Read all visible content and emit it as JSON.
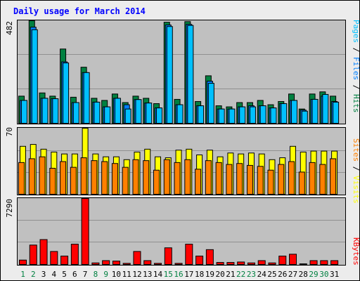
{
  "title": "Daily usage for March 2014",
  "colors": {
    "hits": "#008040",
    "files": "#0080ff",
    "pages": "#00c0ff",
    "visits": "#ffff00",
    "sites": "#ff8000",
    "kbytes": "#ff0000",
    "title": "#0000ff",
    "weekend": "#008040",
    "weekday": "#000000",
    "panel": "#c0c0c0",
    "background": "#ececec"
  },
  "legend": {
    "top": [
      "Pages",
      "Files",
      "Hits"
    ],
    "middle": [
      "Sites",
      "Visits"
    ],
    "bottom": [
      "KBytes"
    ],
    "separator": " / "
  },
  "chart_data": {
    "type": "bar",
    "categories": [
      "1",
      "2",
      "3",
      "4",
      "5",
      "6",
      "7",
      "8",
      "9",
      "10",
      "11",
      "12",
      "13",
      "14",
      "15",
      "16",
      "17",
      "18",
      "19",
      "20",
      "21",
      "22",
      "23",
      "24",
      "25",
      "26",
      "27",
      "28",
      "29",
      "30",
      "31"
    ],
    "weekend_days": [
      "1",
      "2",
      "8",
      "9",
      "15",
      "16",
      "22",
      "23",
      "29",
      "30"
    ],
    "series": [
      {
        "name": "Hits",
        "panel": "top",
        "values": [
          130,
          482,
          145,
          130,
          350,
          125,
          265,
          120,
          110,
          140,
          100,
          130,
          120,
          95,
          475,
          115,
          478,
          105,
          225,
          85,
          80,
          100,
          100,
          110,
          90,
          105,
          140,
          70,
          140,
          150,
          130
        ]
      },
      {
        "name": "Files",
        "panel": "top",
        "values": [
          110,
          452,
          120,
          118,
          290,
          100,
          240,
          102,
          80,
          120,
          90,
          114,
          98,
          75,
          462,
          90,
          465,
          85,
          200,
          70,
          70,
          80,
          85,
          85,
          75,
          95,
          110,
          65,
          115,
          130,
          105
        ]
      },
      {
        "name": "Pages",
        "panel": "top",
        "values": [
          110,
          440,
          120,
          118,
          285,
          100,
          240,
          102,
          80,
          120,
          70,
          114,
          98,
          75,
          455,
          90,
          460,
          85,
          190,
          70,
          70,
          80,
          80,
          85,
          75,
          95,
          110,
          60,
          115,
          138,
          102
        ]
      },
      {
        "name": "Visits",
        "panel": "middle",
        "values": [
          51,
          53,
          48,
          45,
          43,
          43,
          70,
          43,
          40,
          40,
          37,
          45,
          48,
          40,
          39,
          47,
          48,
          42,
          47,
          40,
          44,
          43,
          44,
          43,
          37,
          39,
          51,
          45,
          46,
          46,
          46
        ]
      },
      {
        "name": "Sites",
        "panel": "middle",
        "values": [
          34,
          38,
          40,
          28,
          35,
          29,
          39,
          36,
          35,
          33,
          29,
          37,
          36,
          26,
          37,
          34,
          37,
          27,
          36,
          34,
          32,
          33,
          31,
          30,
          26,
          32,
          35,
          24,
          34,
          32,
          38
        ]
      },
      {
        "name": "KBytes",
        "panel": "bottom",
        "values": [
          560,
          2200,
          2800,
          1500,
          1000,
          2300,
          7290,
          250,
          500,
          450,
          200,
          1500,
          500,
          200,
          1900,
          200,
          2300,
          1000,
          1700,
          300,
          300,
          350,
          250,
          500,
          250,
          1000,
          1200,
          150,
          500,
          500,
          500
        ]
      }
    ],
    "ylabels": {
      "top": "482",
      "middle": "70",
      "bottom": "7290"
    },
    "ymax": {
      "top": 482,
      "middle": 70,
      "bottom": 7290
    },
    "grid": true
  }
}
